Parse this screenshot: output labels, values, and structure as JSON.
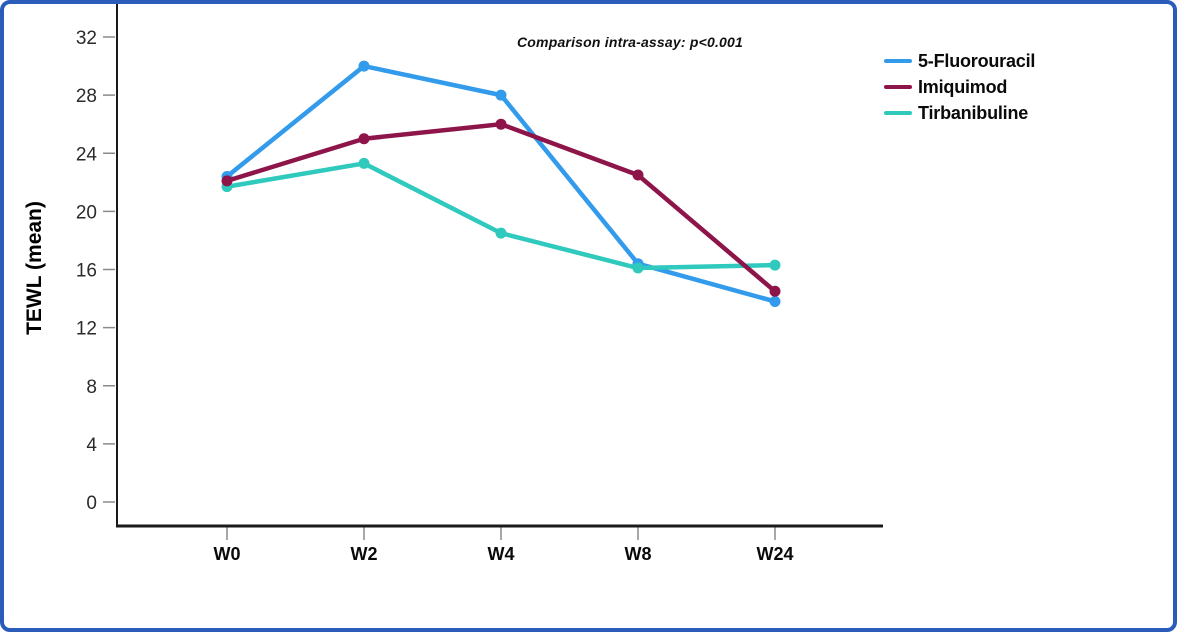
{
  "figure": {
    "border_color": "#2B5CB9",
    "background": "#FFFFFF"
  },
  "chart_data": {
    "type": "line",
    "annotation": "Comparison intra-assay: p<0.001",
    "ylabel": "TEWL (mean)",
    "xlabel": "",
    "categories": [
      "W0",
      "W2",
      "W4",
      "W8",
      "W24"
    ],
    "series": [
      {
        "name": "5-Fluorouracil",
        "color": "#339BEB",
        "values": [
          22.4,
          30,
          28,
          16.4,
          13.8
        ]
      },
      {
        "name": "Imiquimod",
        "color": "#8E154A",
        "values": [
          22.1,
          25,
          26,
          22.5,
          14.5
        ]
      },
      {
        "name": "Tirbanibuline",
        "color": "#2FC9BD",
        "values": [
          21.7,
          23.3,
          18.5,
          16.1,
          16.3
        ]
      }
    ],
    "ylim": [
      0,
      32
    ],
    "yticks": [
      0,
      4,
      8,
      12,
      16,
      20,
      24,
      28,
      32
    ],
    "legend_position": "right",
    "grid": false,
    "axis_color": "#1A1A1A",
    "tick_color": "#8A8A8A",
    "tick_label_color": "#2B2B2B",
    "x_tick_label_color": "#0A0A0A"
  }
}
